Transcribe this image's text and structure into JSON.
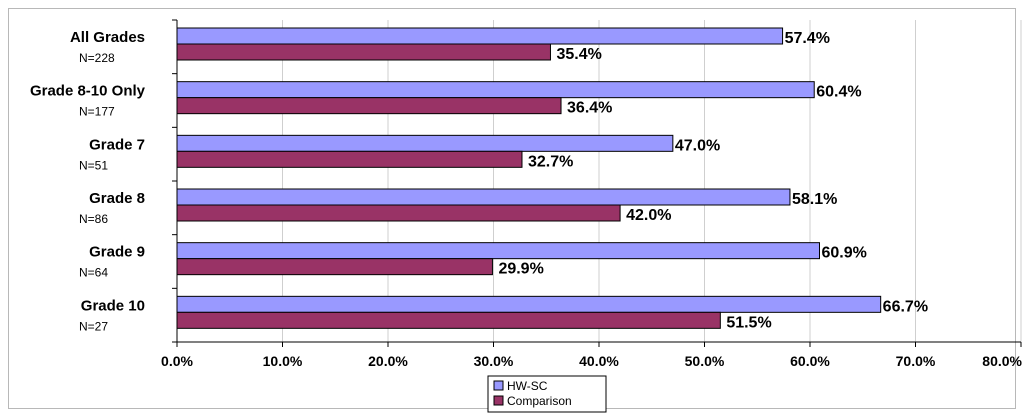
{
  "chart_data": {
    "type": "bar",
    "orientation": "horizontal",
    "categories": [
      "All Grades",
      "Grade 8-10 Only",
      "Grade 7",
      "Grade 8",
      "Grade 9",
      "Grade 10"
    ],
    "category_n": [
      "N=228",
      "N=177",
      "N=51",
      "N=86",
      "N=64",
      "N=27"
    ],
    "series": [
      {
        "name": "HW-SC",
        "color": "#9999ff",
        "values": [
          57.4,
          60.4,
          47.0,
          58.1,
          60.9,
          66.7
        ],
        "labels": [
          "57.4%",
          "60.4%",
          "47.0%",
          "58.1%",
          "60.9%",
          "66.7%"
        ]
      },
      {
        "name": "Comparison",
        "color": "#993366",
        "values": [
          35.4,
          36.4,
          32.7,
          42.0,
          29.9,
          51.5
        ],
        "labels": [
          "35.4%",
          "36.4%",
          "32.7%",
          "42.0%",
          "29.9%",
          "51.5%"
        ]
      }
    ],
    "xlim": [
      0,
      80
    ],
    "xticks": [
      0,
      10,
      20,
      30,
      40,
      50,
      60,
      70,
      80
    ],
    "xtick_labels": [
      "0.0%",
      "10.0%",
      "20.0%",
      "30.0%",
      "40.0%",
      "50.0%",
      "60.0%",
      "70.0%",
      "80.0%"
    ],
    "grid": true,
    "legend_position": "bottom-center"
  }
}
